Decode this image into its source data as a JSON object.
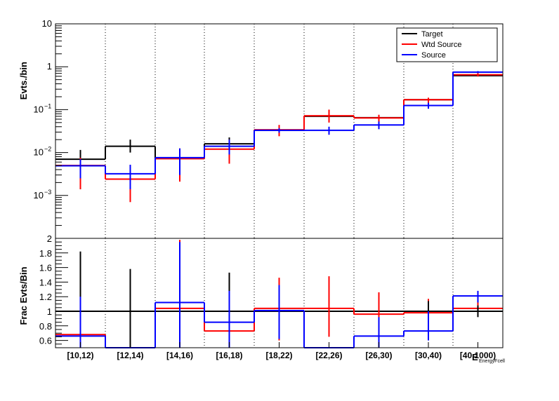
{
  "chart_data": [
    {
      "type": "line",
      "step": true,
      "ylabel": "Evts./bin",
      "yscale": "log",
      "ylim": [
        0.0001,
        10
      ],
      "y_ticks": [
        {
          "value": 10,
          "base": "10",
          "exp": ""
        },
        {
          "value": 1,
          "base": "1",
          "exp": ""
        },
        {
          "value": 0.1,
          "base": "10",
          "exp": "−1"
        },
        {
          "value": 0.01,
          "base": "10",
          "exp": "−2"
        },
        {
          "value": 0.001,
          "base": "10",
          "exp": "−3"
        }
      ],
      "categories": [
        "[10,12)",
        "[12,14)",
        "[14,16)",
        "[16,18)",
        "[18,22)",
        "[22,26)",
        "[26,30)",
        "[30,40)",
        "[40,1000)"
      ],
      "grid": {
        "x": "dotted",
        "y": "none"
      },
      "legend": {
        "position": "top-right",
        "entries": [
          "Target",
          "Wtd Source",
          "Source"
        ]
      },
      "series": [
        {
          "name": "Target",
          "color": "#000000",
          "values": [
            0.007,
            0.014,
            0.0075,
            0.016,
            0.033,
            0.07,
            0.065,
            0.17,
            0.62
          ],
          "err_lo": [
            0.0014,
            0.01,
            0.007,
            0.014,
            0.032,
            0.069,
            0.064,
            0.168,
            0.6
          ],
          "err_hi": [
            0.0115,
            0.02,
            0.0082,
            0.0225,
            0.034,
            0.071,
            0.066,
            0.172,
            0.64
          ]
        },
        {
          "name": "Wtd Source",
          "color": "#ff0000",
          "values": [
            0.005,
            0.0024,
            0.0072,
            0.012,
            0.034,
            0.072,
            0.064,
            0.17,
            0.65
          ],
          "err_lo": [
            0.0014,
            0.0007,
            0.0021,
            0.0055,
            0.024,
            0.05,
            0.05,
            0.135,
            0.59
          ],
          "err_hi": [
            0.0075,
            0.0035,
            0.0125,
            0.02,
            0.044,
            0.1,
            0.076,
            0.19,
            0.71
          ]
        },
        {
          "name": "Source",
          "color": "#0000ff",
          "values": [
            0.0049,
            0.0032,
            0.0076,
            0.014,
            0.033,
            0.033,
            0.044,
            0.125,
            0.75
          ],
          "err_lo": [
            0.0025,
            0.0014,
            0.003,
            0.009,
            0.029,
            0.026,
            0.035,
            0.105,
            0.71
          ],
          "err_hi": [
            0.007,
            0.0052,
            0.0125,
            0.02,
            0.037,
            0.04,
            0.053,
            0.145,
            0.79
          ]
        }
      ]
    },
    {
      "type": "line",
      "step": true,
      "ylabel": "Frac Evts/Bin",
      "xlabel": "E",
      "xlabel_sub": "EnergyFcell",
      "ylim": [
        0.5,
        2.0
      ],
      "y_ticks": [
        {
          "value": 2.0,
          "label": "2"
        },
        {
          "value": 1.8,
          "label": "1.8"
        },
        {
          "value": 1.6,
          "label": "1.6"
        },
        {
          "value": 1.4,
          "label": "1.4"
        },
        {
          "value": 1.2,
          "label": "1.2"
        },
        {
          "value": 1.0,
          "label": "1"
        },
        {
          "value": 0.8,
          "label": "0.8"
        },
        {
          "value": 0.6,
          "label": "0.6"
        }
      ],
      "reference_line": 1.0,
      "series": [
        {
          "name": "Target",
          "color": "#000000",
          "values": [
            null,
            null,
            null,
            null,
            null,
            null,
            null,
            null,
            null
          ],
          "err_lo": [
            0.5,
            0.5,
            null,
            0.85,
            null,
            null,
            null,
            0.86,
            0.92
          ],
          "err_hi": [
            1.82,
            1.58,
            null,
            1.53,
            null,
            null,
            null,
            1.14,
            1.08
          ]
        },
        {
          "name": "Wtd Source",
          "color": "#ff0000",
          "values": [
            0.68,
            0.5,
            1.04,
            0.73,
            1.04,
            1.04,
            0.96,
            0.98,
            1.04
          ],
          "err_lo": [
            0.5,
            null,
            0.55,
            0.5,
            0.6,
            0.65,
            0.72,
            0.84,
            0.95
          ],
          "err_hi": [
            1.32,
            null,
            1.98,
            1.1,
            1.46,
            1.48,
            1.26,
            1.17,
            1.15
          ]
        },
        {
          "name": "Source",
          "color": "#0000ff",
          "values": [
            0.66,
            0.5,
            1.12,
            0.85,
            1.01,
            0.5,
            0.66,
            0.73,
            1.21
          ],
          "err_lo": [
            0.5,
            null,
            0.5,
            0.5,
            0.62,
            null,
            0.5,
            0.6,
            1.12
          ],
          "err_hi": [
            1.2,
            null,
            1.95,
            1.28,
            1.36,
            null,
            0.92,
            1.0,
            1.28
          ]
        }
      ]
    }
  ]
}
